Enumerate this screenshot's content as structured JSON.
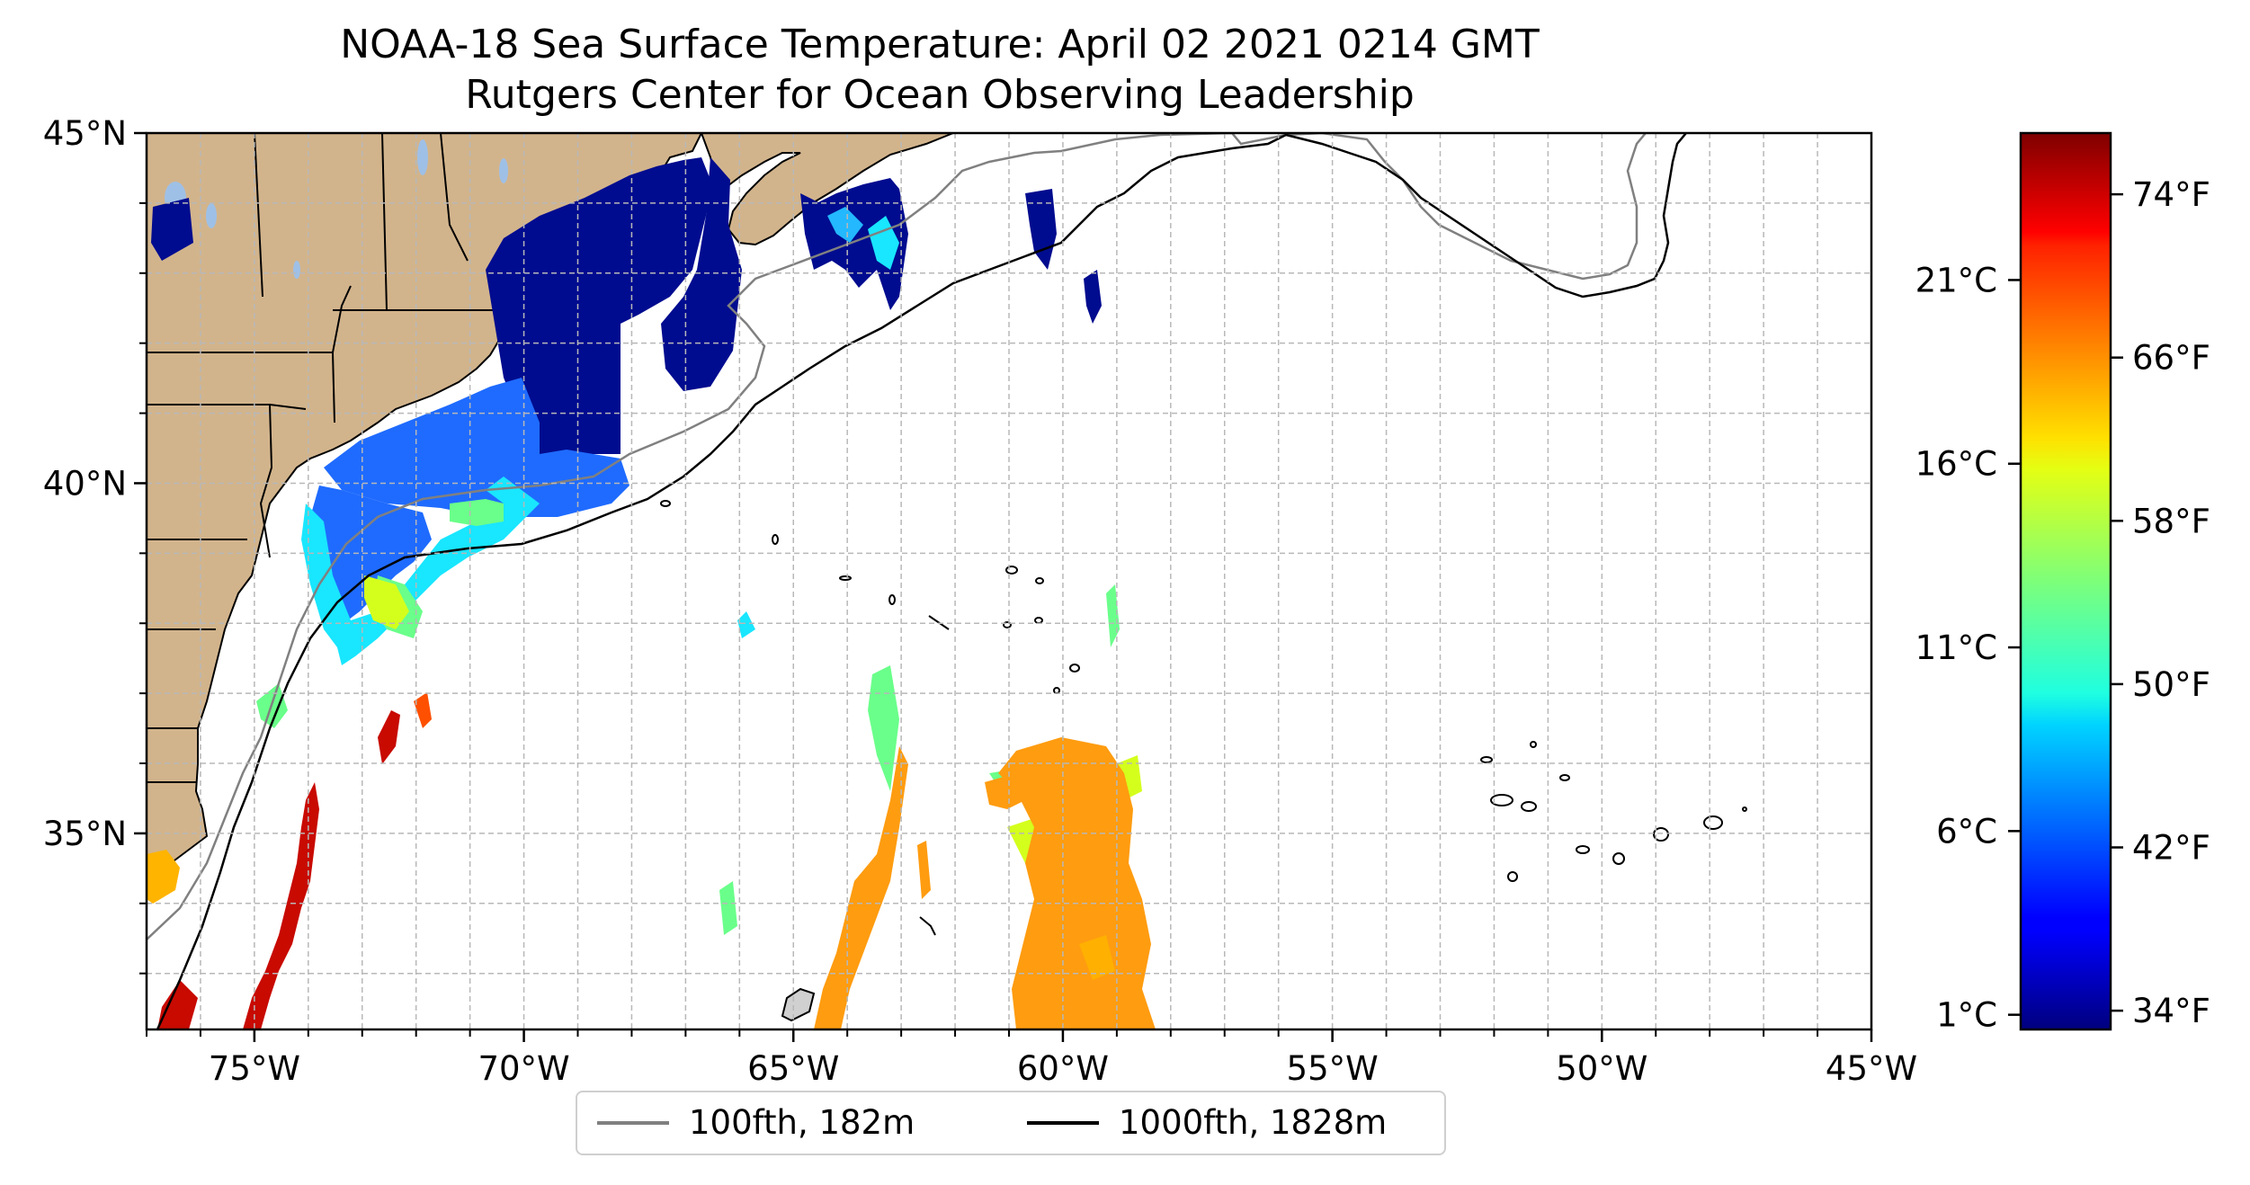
{
  "title": "NOAA-18 Sea Surface Temperature: April 02 2021 0214 GMT",
  "subtitle": "Rutgers Center for Ocean Observing Leadership",
  "map": {
    "lon_range": [
      -77,
      -45
    ],
    "lat_range": [
      32.2,
      45
    ],
    "lat_ticks": [
      {
        "value": 45,
        "label": "45°N"
      },
      {
        "value": 40,
        "label": "40°N"
      },
      {
        "value": 35,
        "label": "35°N"
      }
    ],
    "lon_ticks": [
      {
        "value": -75,
        "label": "75°W"
      },
      {
        "value": -70,
        "label": "70°W"
      },
      {
        "value": -65,
        "label": "65°W"
      },
      {
        "value": -60,
        "label": "60°W"
      },
      {
        "value": -55,
        "label": "55°W"
      },
      {
        "value": -50,
        "label": "50°W"
      },
      {
        "value": -45,
        "label": "45°W"
      }
    ],
    "gridlines": "dashed, every 1 degree",
    "land_color": "#d2b48c",
    "lake_color": "#9fc0e6"
  },
  "colorbar": {
    "colormap": "jet",
    "celsius_range": [
      0.6,
      25
    ],
    "celsius_ticks": [
      {
        "value": 1,
        "label": "1°C"
      },
      {
        "value": 6,
        "label": "6°C"
      },
      {
        "value": 11,
        "label": "11°C"
      },
      {
        "value": 16,
        "label": "16°C"
      },
      {
        "value": 21,
        "label": "21°C"
      }
    ],
    "fahrenheit_ticks": [
      {
        "value": 34,
        "label": "34°F"
      },
      {
        "value": 42,
        "label": "42°F"
      },
      {
        "value": 50,
        "label": "50°F"
      },
      {
        "value": 58,
        "label": "58°F"
      },
      {
        "value": 66,
        "label": "66°F"
      },
      {
        "value": 74,
        "label": "74°F"
      }
    ]
  },
  "legend": {
    "placement": "bottom-center",
    "items": [
      {
        "label": "100fth, 182m",
        "color": "#808080"
      },
      {
        "label": "1000fth, 1828m",
        "color": "#000000"
      }
    ]
  }
}
